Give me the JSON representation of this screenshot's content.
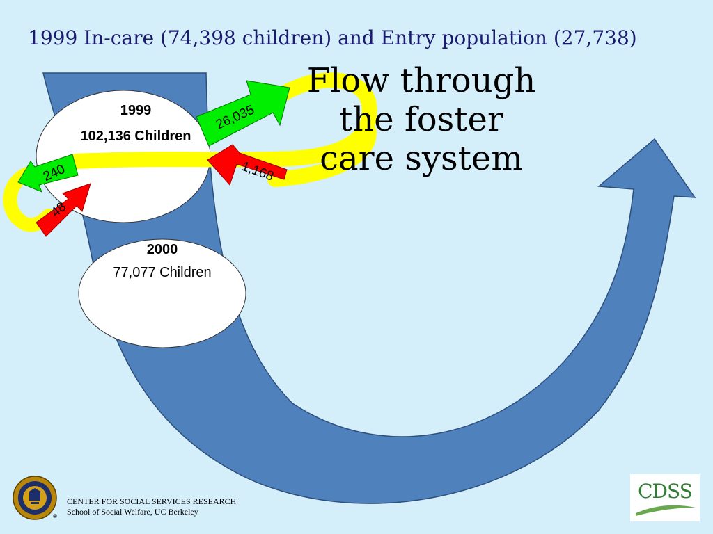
{
  "slide": {
    "title": "1999 In-care (74,398 children) and Entry population (27,738)",
    "heading_lines": [
      "Flow through",
      "the foster",
      "care system"
    ]
  },
  "nodes": {
    "n1999": {
      "year": "1999",
      "count": "102,136 Children"
    },
    "n2000": {
      "year": "2000",
      "count": "77,077 Children"
    }
  },
  "flows": {
    "big_out": "26,035",
    "big_in": "1,168",
    "small_out": "240",
    "small_in": "48"
  },
  "colors": {
    "background": "#d4eefa",
    "blue_arrow": "#4f81bd",
    "loop": "#ffff00",
    "out_arrow": "#00ee00",
    "in_arrow": "#ff0000"
  },
  "footer": {
    "line1": "CENTER FOR SOCIAL SERVICES RESEARCH",
    "line2": "School of Social Welfare, UC Berkeley"
  },
  "logos": {
    "seal_icon": "uc-seal-icon",
    "seal_mark": "®",
    "cdss_text": "CDSS"
  }
}
